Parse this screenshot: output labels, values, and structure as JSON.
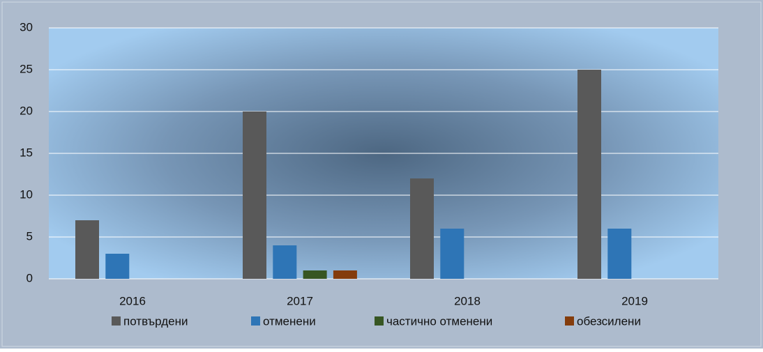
{
  "chart_data": {
    "type": "bar",
    "categories": [
      "2016",
      "2017",
      "2018",
      "2019"
    ],
    "series": [
      {
        "name": "потвърдени",
        "color": "#595959",
        "values": [
          7,
          20,
          12,
          25
        ]
      },
      {
        "name": "отменени",
        "color": "#2e75b6",
        "values": [
          3,
          4,
          6,
          6
        ]
      },
      {
        "name": "частично отменени",
        "color": "#375623",
        "values": [
          0,
          1,
          0,
          0
        ]
      },
      {
        "name": "обезсилени",
        "color": "#843c0c",
        "values": [
          0,
          1,
          0,
          0
        ]
      }
    ],
    "ylim": [
      0,
      30
    ],
    "yticks": [
      0,
      5,
      10,
      15,
      20,
      25,
      30
    ],
    "grid": true,
    "legend": "bottom"
  }
}
